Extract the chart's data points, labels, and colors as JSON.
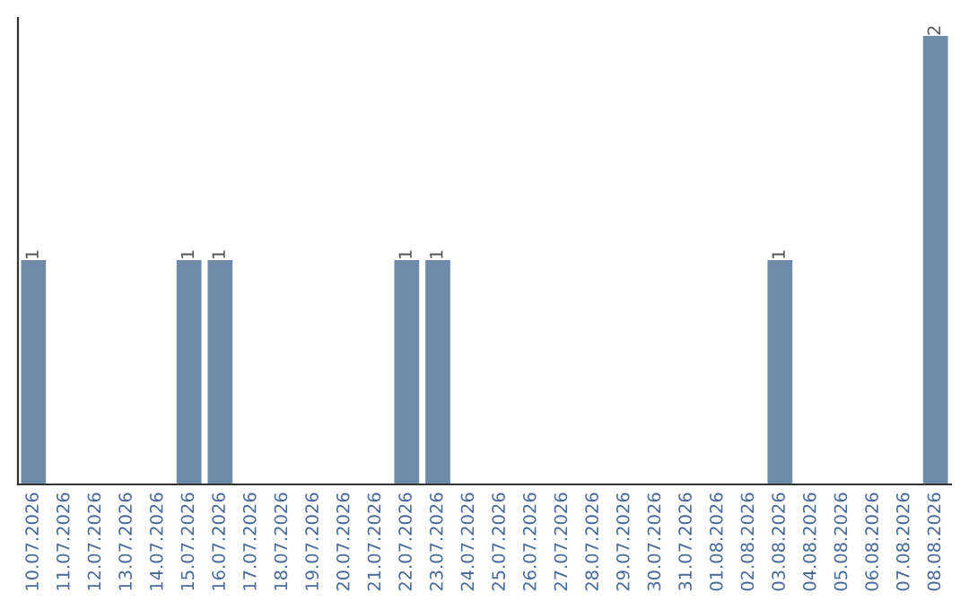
{
  "chart_data": {
    "type": "bar",
    "categories": [
      "10.07.2026",
      "11.07.2026",
      "12.07.2026",
      "13.07.2026",
      "14.07.2026",
      "15.07.2026",
      "16.07.2026",
      "17.07.2026",
      "18.07.2026",
      "19.07.2026",
      "20.07.2026",
      "21.07.2026",
      "22.07.2026",
      "23.07.2026",
      "24.07.2026",
      "25.07.2026",
      "26.07.2026",
      "27.07.2026",
      "28.07.2026",
      "29.07.2026",
      "30.07.2026",
      "31.07.2026",
      "01.08.2026",
      "02.08.2026",
      "03.08.2026",
      "04.08.2026",
      "05.08.2026",
      "06.08.2026",
      "07.08.2026",
      "08.08.2026"
    ],
    "values": [
      1,
      0,
      0,
      0,
      0,
      1,
      1,
      0,
      0,
      0,
      0,
      0,
      1,
      1,
      0,
      0,
      0,
      0,
      0,
      0,
      0,
      0,
      0,
      0,
      1,
      0,
      0,
      0,
      0,
      2
    ],
    "color": "#6e8caa",
    "value_labels": [
      "1",
      null,
      null,
      null,
      null,
      "1",
      "1",
      null,
      null,
      null,
      null,
      null,
      "1",
      "1",
      null,
      null,
      null,
      null,
      null,
      null,
      null,
      null,
      null,
      null,
      "1",
      null,
      null,
      null,
      null,
      "2"
    ],
    "tick_labels": "x",
    "grid": false
  }
}
